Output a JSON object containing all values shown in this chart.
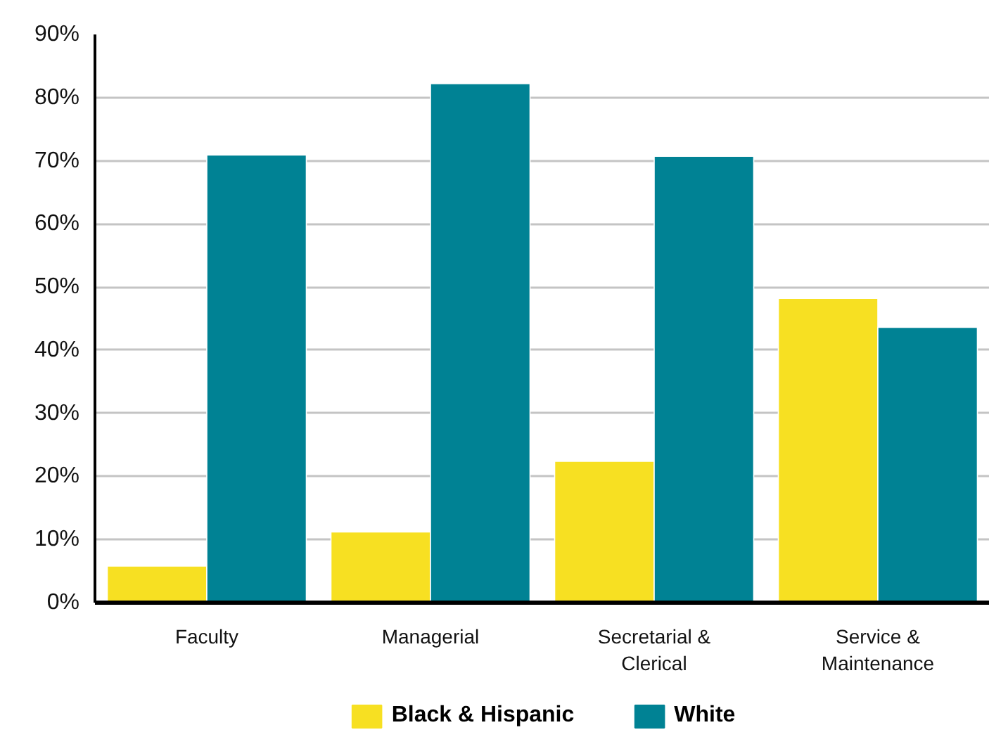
{
  "chart_data": {
    "type": "bar",
    "categories": [
      "Faculty",
      "Managerial",
      "Secretarial &\nClerical",
      "Service &\nMaintenance"
    ],
    "series": [
      {
        "name": "Black & Hispanic",
        "color": "#f7e022",
        "values": [
          5.8,
          11.2,
          22.4,
          48.2
        ]
      },
      {
        "name": "White",
        "color": "#008294",
        "values": [
          70.9,
          82.2,
          70.7,
          43.6
        ]
      }
    ],
    "ylim": [
      0,
      90
    ],
    "yticks": [
      {
        "value": 0,
        "label": "0%"
      },
      {
        "value": 10,
        "label": "10%"
      },
      {
        "value": 20,
        "label": "20%"
      },
      {
        "value": 30,
        "label": "30%"
      },
      {
        "value": 40,
        "label": "40%"
      },
      {
        "value": 50,
        "label": "50%"
      },
      {
        "value": 60,
        "label": "60%"
      },
      {
        "value": 70,
        "label": "70%"
      },
      {
        "value": 80,
        "label": "80%"
      },
      {
        "value": 90,
        "label": "90%"
      }
    ],
    "grid": "y",
    "legend": "bottom"
  }
}
